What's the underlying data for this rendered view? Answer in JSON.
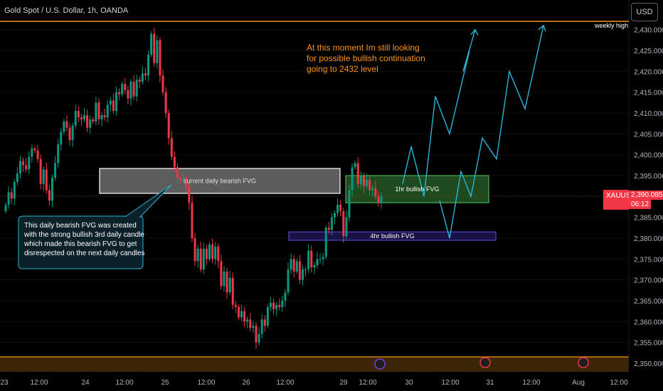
{
  "header": {
    "title": "Gold Spot / U.S. Dollar, 1h, OANDA"
  },
  "currency_button": {
    "label": "USD"
  },
  "price_tag": {
    "symbol": "XAUUSD",
    "price": "2,390.085",
    "countdown": "06:12"
  },
  "colors": {
    "background": "#000000",
    "up_candle": "#089981",
    "down_candle": "#f23645",
    "weekly_high_line": "#f7931a",
    "path": "#29b6d8",
    "daily_fvg_fill": "#5d5d5d",
    "fvg_1hr": "#4caf50",
    "fvg_4hr": "#5b3fd0",
    "annotation": "#f7931a"
  },
  "chart_data": {
    "type": "candlestick",
    "ylim": [
      2347,
      2433
    ],
    "y_ticks": [
      2350,
      2355,
      2360,
      2365,
      2370,
      2375,
      2380,
      2385,
      2390,
      2395,
      2400,
      2405,
      2410,
      2415,
      2420,
      2425,
      2430
    ],
    "y_tick_labels": [
      "2,350.000",
      "2,355.000",
      "2,360.000",
      "2,365.000",
      "2,370.000",
      "2,375.000",
      "2,380.000",
      "2,385.000",
      "2,390.000",
      "2,395.000",
      "2,400.000",
      "2,405.000",
      "2,410.000",
      "2,415.000",
      "2,420.000",
      "2,425.000",
      "2,430.000"
    ],
    "x_axis_labels": [
      "23",
      "12:00",
      "24",
      "12:00",
      "25",
      "12:00",
      "26",
      "12:00",
      "29",
      "12:00",
      "30",
      "12:00",
      "31",
      "12:00",
      "Aug",
      "12:00"
    ],
    "current_price": 2390.085,
    "weekly_high": {
      "label": "weekly high",
      "price": 2432
    },
    "zones": [
      {
        "name": "daily-bearish-fvg",
        "label": "current daily bearish FVG",
        "from_bar": 0,
        "to_bar": 111,
        "y_high": 2394.5,
        "y_low": 2388.5
      },
      {
        "name": "1hr-bullish-fvg",
        "label": "1hr bullish FVG",
        "from_bar": 111,
        "to_bar": 159,
        "y_high": 2395,
        "y_low": 2388.5
      },
      {
        "name": "4hr-bullish-fvg",
        "label": "4hr bullish FVG",
        "from_bar": 94,
        "to_bar": 161,
        "y_high": 2381.5,
        "y_low": 2379.5
      }
    ],
    "annotations": {
      "top": "At this moment Im still looking\nfor possible bullish continuation\ngoing to 2432 level",
      "callout": "This daily bearish FVG was created\nwith the strong bullish 3rd daily candle\nwhich made this bearish FVG to get\ndisrespected on the next daily candles"
    },
    "projected_path_1": [
      [
        130,
        2393
      ],
      [
        133,
        2402
      ],
      [
        137,
        2390
      ],
      [
        141,
        2414
      ],
      [
        145,
        2405
      ],
      [
        149,
        2425
      ],
      [
        152,
        2420
      ],
      [
        155,
        2430
      ]
    ],
    "projected_path_2": [
      [
        144,
        2389
      ],
      [
        147,
        2380
      ],
      [
        151,
        2396
      ],
      [
        154,
        2390
      ],
      [
        157,
        2404
      ],
      [
        161,
        2399
      ],
      [
        165,
        2420
      ],
      [
        170,
        2411
      ],
      [
        176,
        2431
      ]
    ],
    "series_close": [
      2388.0,
      2391.0,
      2389.5,
      2393.5,
      2395.5,
      2398.5,
      2397.5,
      2396.5,
      2399.5,
      2401.5,
      2401.0,
      2399.0,
      2393.0,
      2396.5,
      2391.5,
      2389.0,
      2394.5,
      2398.0,
      2402.5,
      2405.5,
      2408.0,
      2406.5,
      2403.5,
      2407.0,
      2410.5,
      2409.0,
      2408.5,
      2409.5,
      2406.5,
      2408.5,
      2408.0,
      2412.5,
      2408.5,
      2409.5,
      2409.0,
      2412.0,
      2413.0,
      2410.5,
      2415.0,
      2414.5,
      2417.0,
      2415.5,
      2413.5,
      2417.5,
      2414.0,
      2418.0,
      2417.5,
      2419.5,
      2419.0,
      2424.0,
      2429.0,
      2422.0,
      2427.5,
      2419.0,
      2415.0,
      2410.0,
      2404.0,
      2399.5,
      2397.0,
      2394.5,
      2394.0,
      2394.5,
      2392.5,
      2388.5,
      2380.0,
      2374.5,
      2377.5,
      2372.5,
      2377.5,
      2375.0,
      2378.5,
      2375.0,
      2378.0,
      2374.5,
      2368.5,
      2372.0,
      2367.0,
      2370.5,
      2364.0,
      2363.5,
      2361.0,
      2362.5,
      2360.0,
      2360.5,
      2358.5,
      2359.0,
      2355.0,
      2357.0,
      2360.5,
      2359.0,
      2363.5,
      2364.5,
      2363.0,
      2364.0,
      2363.5,
      2365.0,
      2367.0,
      2372.5,
      2375.0,
      2372.0,
      2374.5,
      2370.0,
      2372.5,
      2372.5,
      2377.0,
      2373.0,
      2373.5,
      2375.0,
      2375.0,
      2375.5,
      2382.5,
      2382.0,
      2385.0,
      2386.0,
      2388.0,
      2386.5,
      2380.5,
      2385.0,
      2391.5,
      2397.0,
      2398.0,
      2393.0,
      2395.0,
      2392.5,
      2394.0,
      2391.5,
      2392.0,
      2390.0,
      2388.5,
      2390.0
    ]
  }
}
